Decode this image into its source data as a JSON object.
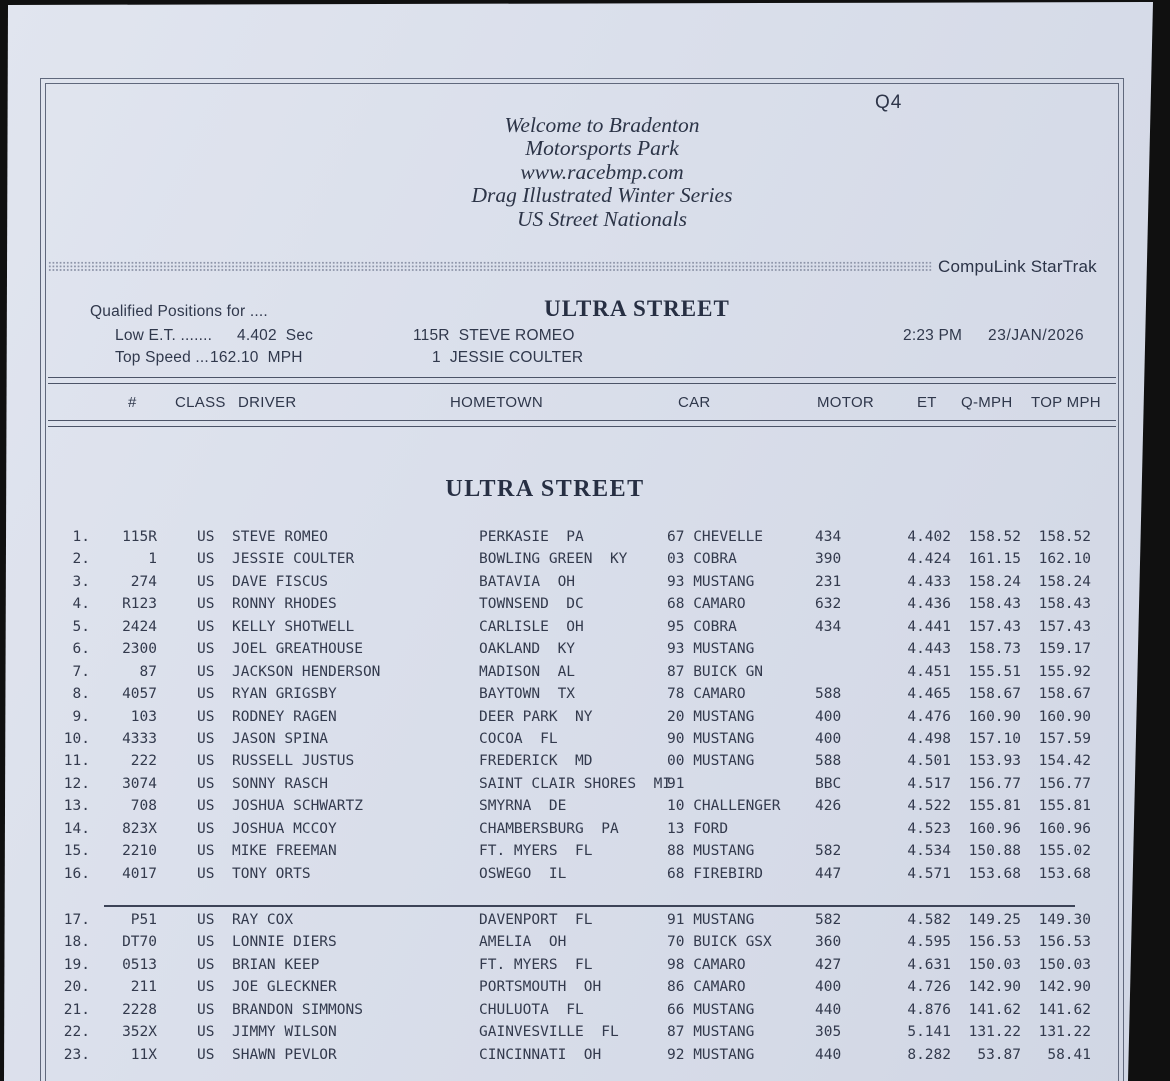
{
  "header": {
    "session": "Q4",
    "welcome_lines": [
      "Welcome to Bradenton",
      "Motorsports Park",
      "www.racebmp.com",
      "Drag Illustrated Winter Series",
      "US Street Nationals"
    ],
    "system_name": "CompuLink StarTrak"
  },
  "info": {
    "qualified_label": "Qualified Positions for ....",
    "class_title": "ULTRA STREET",
    "low_et_label": "Low E.T. .......",
    "low_et_value": "4.402  Sec",
    "low_et_entry": "115R  STEVE ROMEO",
    "top_speed_label": "Top Speed ...",
    "top_speed_value": "162.10  MPH",
    "top_speed_entry": "1  JESSIE COULTER",
    "time": "2:23 PM",
    "date": "23/JAN/2026"
  },
  "section": {
    "title": "ULTRA STREET"
  },
  "table": {
    "columns": [
      "#",
      "CLASS",
      "DRIVER",
      "HOMETOWN",
      "CAR",
      "MOTOR",
      "ET",
      "Q-MPH",
      "TOP MPH"
    ],
    "qualified_count": 16,
    "rows": [
      [
        "1.",
        "115R",
        "US",
        "STEVE ROMEO",
        "PERKASIE  PA",
        "67 CHEVELLE",
        "434",
        "4.402",
        "158.52",
        "158.52"
      ],
      [
        "2.",
        "1",
        "US",
        "JESSIE COULTER",
        "BOWLING GREEN  KY",
        "03 COBRA",
        "390",
        "4.424",
        "161.15",
        "162.10"
      ],
      [
        "3.",
        "274",
        "US",
        "DAVE FISCUS",
        "BATAVIA  OH",
        "93 MUSTANG",
        "231",
        "4.433",
        "158.24",
        "158.24"
      ],
      [
        "4.",
        "R123",
        "US",
        "RONNY RHODES",
        "TOWNSEND  DC",
        "68 CAMARO",
        "632",
        "4.436",
        "158.43",
        "158.43"
      ],
      [
        "5.",
        "2424",
        "US",
        "KELLY SHOTWELL",
        "CARLISLE  OH",
        "95 COBRA",
        "434",
        "4.441",
        "157.43",
        "157.43"
      ],
      [
        "6.",
        "2300",
        "US",
        "JOEL GREATHOUSE",
        "OAKLAND  KY",
        "93 MUSTANG",
        "",
        "4.443",
        "158.73",
        "159.17"
      ],
      [
        "7.",
        "87",
        "US",
        "JACKSON HENDERSON",
        "MADISON  AL",
        "87 BUICK GN",
        "",
        "4.451",
        "155.51",
        "155.92"
      ],
      [
        "8.",
        "4057",
        "US",
        "RYAN GRIGSBY",
        "BAYTOWN  TX",
        "78 CAMARO",
        "588",
        "4.465",
        "158.67",
        "158.67"
      ],
      [
        "9.",
        "103",
        "US",
        "RODNEY RAGEN",
        "DEER PARK  NY",
        "20 MUSTANG",
        "400",
        "4.476",
        "160.90",
        "160.90"
      ],
      [
        "10.",
        "4333",
        "US",
        "JASON SPINA",
        "COCOA  FL",
        "90 MUSTANG",
        "400",
        "4.498",
        "157.10",
        "157.59"
      ],
      [
        "11.",
        "222",
        "US",
        "RUSSELL JUSTUS",
        "FREDERICK  MD",
        "00 MUSTANG",
        "588",
        "4.501",
        "153.93",
        "154.42"
      ],
      [
        "12.",
        "3074",
        "US",
        "SONNY RASCH",
        "SAINT CLAIR SHORES  MI",
        "91",
        "BBC",
        "4.517",
        "156.77",
        "156.77"
      ],
      [
        "13.",
        "708",
        "US",
        "JOSHUA SCHWARTZ",
        "SMYRNA  DE",
        "10 CHALLENGER",
        "426",
        "4.522",
        "155.81",
        "155.81"
      ],
      [
        "14.",
        "823X",
        "US",
        "JOSHUA MCCOY",
        "CHAMBERSBURG  PA",
        "13 FORD",
        "",
        "4.523",
        "160.96",
        "160.96"
      ],
      [
        "15.",
        "2210",
        "US",
        "MIKE FREEMAN",
        "FT. MYERS  FL",
        "88 MUSTANG",
        "582",
        "4.534",
        "150.88",
        "155.02"
      ],
      [
        "16.",
        "4017",
        "US",
        "TONY ORTS",
        "OSWEGO  IL",
        "68 FIREBIRD",
        "447",
        "4.571",
        "153.68",
        "153.68"
      ],
      [
        "17.",
        "P51",
        "US",
        "RAY COX",
        "DAVENPORT  FL",
        "91 MUSTANG",
        "582",
        "4.582",
        "149.25",
        "149.30"
      ],
      [
        "18.",
        "DT70",
        "US",
        "LONNIE DIERS",
        "AMELIA  OH",
        "70 BUICK GSX",
        "360",
        "4.595",
        "156.53",
        "156.53"
      ],
      [
        "19.",
        "0513",
        "US",
        "BRIAN KEEP",
        "FT. MYERS  FL",
        "98 CAMARO",
        "427",
        "4.631",
        "150.03",
        "150.03"
      ],
      [
        "20.",
        "211",
        "US",
        "JOE GLECKNER",
        "PORTSMOUTH  OH",
        "86 CAMARO",
        "400",
        "4.726",
        "142.90",
        "142.90"
      ],
      [
        "21.",
        "2228",
        "US",
        "BRANDON SIMMONS",
        "CHULUOTA  FL",
        "66 MUSTANG",
        "440",
        "4.876",
        "141.62",
        "141.62"
      ],
      [
        "22.",
        "352X",
        "US",
        "JIMMY WILSON",
        "GAINVESVILLE  FL",
        "87 MUSTANG",
        "305",
        "5.141",
        "131.22",
        "131.22"
      ],
      [
        "23.",
        "11X",
        "US",
        "SHAWN PEVLOR",
        "CINCINNATI  OH",
        "92 MUSTANG",
        "440",
        "8.282",
        "53.87",
        "58.41"
      ]
    ]
  }
}
